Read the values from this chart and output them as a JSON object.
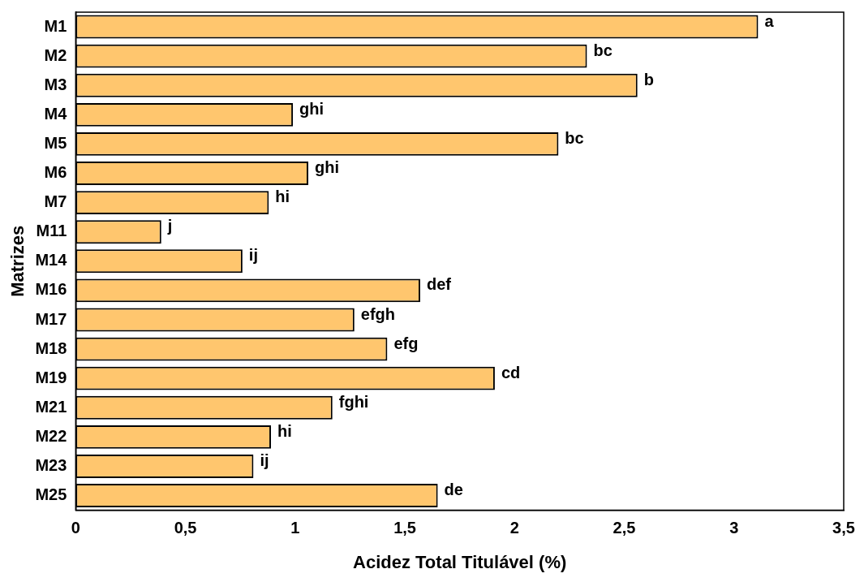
{
  "chart_data": {
    "type": "bar",
    "orientation": "horizontal",
    "xlabel": "Acidez Total Titulável (%)",
    "ylabel": "Matrizes",
    "categories": [
      "M1",
      "M2",
      "M3",
      "M4",
      "M5",
      "M6",
      "M7",
      "M11",
      "M14",
      "M16",
      "M17",
      "M18",
      "M19",
      "M21",
      "M22",
      "M23",
      "M25"
    ],
    "values": [
      3.11,
      2.33,
      2.56,
      0.99,
      2.2,
      1.06,
      0.88,
      0.39,
      0.76,
      1.57,
      1.27,
      1.42,
      1.91,
      1.17,
      0.89,
      0.81,
      1.65
    ],
    "value_labels": [
      "a",
      "bc",
      "b",
      "ghi",
      "bc",
      "ghi",
      "hi",
      "j",
      "ij",
      "def",
      "efgh",
      "efg",
      "cd",
      "fghi",
      "hi",
      "ij",
      "de"
    ],
    "color": "#ffc66e",
    "xlim": [
      0,
      3.5
    ],
    "xticks": [
      0,
      {
        "value": 0.5,
        "label": "0,5"
      },
      1,
      {
        "value": 1.5,
        "label": "1,5"
      },
      2,
      {
        "value": 2.5,
        "label": "2,5"
      },
      3,
      {
        "value": 3.5,
        "label": "3,5"
      }
    ],
    "grid": false,
    "legend": false
  }
}
